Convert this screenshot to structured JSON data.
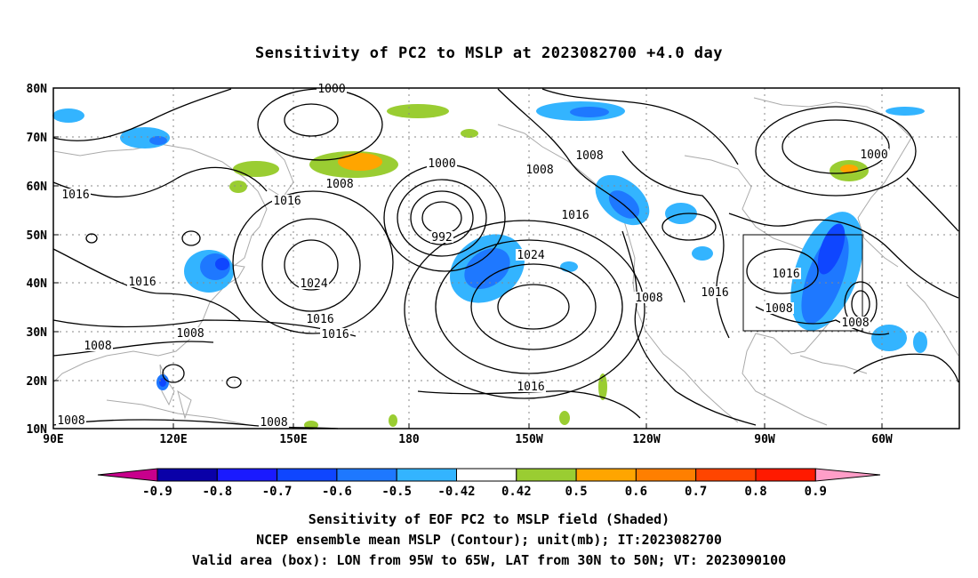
{
  "title": "Sensitivity of PC2 to MSLP at 2023082700 +4.0 day",
  "lat_labels": [
    "80N",
    "70N",
    "60N",
    "50N",
    "40N",
    "30N",
    "20N",
    "10N"
  ],
  "lon_labels": [
    "90E",
    "120E",
    "150E",
    "180",
    "150W",
    "120W",
    "90W",
    "60W"
  ],
  "contour_labels": [
    {
      "text": "1000"
    },
    {
      "text": "1016"
    },
    {
      "text": "1008"
    },
    {
      "text": "1000"
    },
    {
      "text": "1008"
    },
    {
      "text": "1008"
    },
    {
      "text": "1016"
    },
    {
      "text": "1016"
    },
    {
      "text": "992"
    },
    {
      "text": "1024"
    },
    {
      "text": "1016"
    },
    {
      "text": "1024"
    },
    {
      "text": "1016"
    },
    {
      "text": "1016"
    },
    {
      "text": "1008"
    },
    {
      "text": "1008"
    },
    {
      "text": "1016"
    },
    {
      "text": "1008"
    },
    {
      "text": "1016"
    },
    {
      "text": "1008"
    },
    {
      "text": "1016"
    },
    {
      "text": "1008"
    },
    {
      "text": "1000"
    },
    {
      "text": "1008"
    },
    {
      "text": "1008"
    }
  ],
  "colorbar": {
    "labels": [
      "-0.9",
      "-0.8",
      "-0.7",
      "-0.6",
      "-0.5",
      "-0.42",
      "0.42",
      "0.5",
      "0.6",
      "0.7",
      "0.8",
      "0.9"
    ],
    "colors": [
      "#0a00a8",
      "#1a1aff",
      "#0f46ff",
      "#1e78ff",
      "#33b4ff",
      "#ffffff",
      "#9acd32",
      "#ffa500",
      "#ff7f00",
      "#ff4500",
      "#ff1a00"
    ],
    "under_color": "#c8008c",
    "over_color": "#ff9ec8"
  },
  "captions": {
    "line1": "Sensitivity of EOF PC2 to MSLP field (Shaded)",
    "line2": "NCEP ensemble mean MSLP (Contour); unit(mb); IT:2023082700",
    "line3": "Valid area (box): LON from 95W to 65W, LAT from 30N to 50N; VT: 2023090100"
  }
}
